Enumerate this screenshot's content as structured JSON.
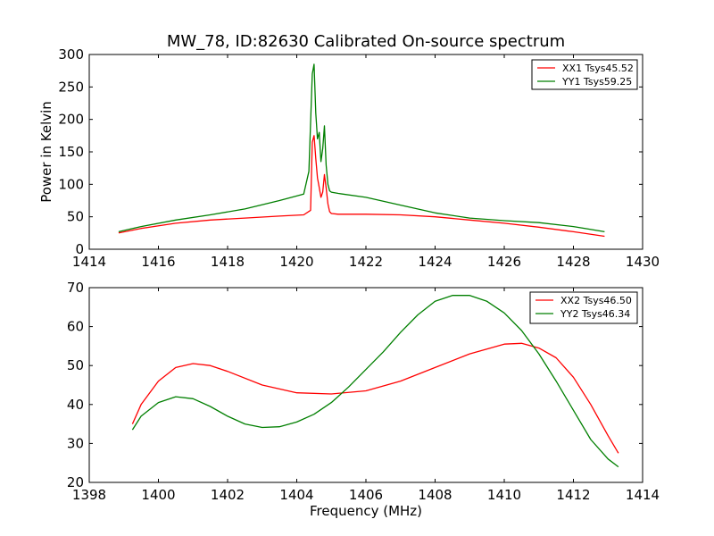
{
  "title": "MW_78, ID:82630 Calibrated On-source spectrum",
  "chart_data": [
    {
      "type": "line",
      "xlim": [
        1414,
        1430
      ],
      "ylim": [
        0,
        300
      ],
      "xticks": [
        "1414",
        "1416",
        "1418",
        "1420",
        "1422",
        "1424",
        "1426",
        "1428",
        "1430"
      ],
      "yticks": [
        "0",
        "50",
        "100",
        "150",
        "200",
        "250",
        "300"
      ],
      "xlabel": "",
      "ylabel": "Power in Kelvin",
      "legend_position": "top-right",
      "series": [
        {
          "name": "XX1 Tsys45.52",
          "color": "#ff0000",
          "x": [
            1414.85,
            1415.5,
            1416.5,
            1417.5,
            1418.5,
            1419.5,
            1420.2,
            1420.4,
            1420.45,
            1420.5,
            1420.55,
            1420.6,
            1420.65,
            1420.7,
            1420.75,
            1420.8,
            1420.85,
            1420.9,
            1420.95,
            1421.0,
            1421.2,
            1422.0,
            1423.0,
            1424.0,
            1425.0,
            1426.0,
            1427.0,
            1428.0,
            1428.9
          ],
          "y": [
            25,
            32,
            40,
            45,
            48,
            51,
            53,
            60,
            165,
            175,
            140,
            110,
            95,
            80,
            88,
            115,
            95,
            70,
            58,
            55,
            54,
            54,
            53,
            50,
            45,
            40,
            34,
            27,
            20
          ]
        },
        {
          "name": "YY1 Tsys59.25",
          "color": "#007f00",
          "x": [
            1414.85,
            1415.5,
            1416.5,
            1417.5,
            1418.5,
            1419.5,
            1420.2,
            1420.35,
            1420.45,
            1420.5,
            1420.55,
            1420.6,
            1420.65,
            1420.7,
            1420.75,
            1420.8,
            1420.85,
            1420.9,
            1420.95,
            1421.0,
            1421.2,
            1422.0,
            1423.0,
            1424.0,
            1425.0,
            1426.0,
            1427.0,
            1428.0,
            1428.9
          ],
          "y": [
            27,
            35,
            45,
            53,
            62,
            75,
            85,
            120,
            270,
            285,
            210,
            170,
            180,
            135,
            155,
            190,
            130,
            100,
            90,
            88,
            86,
            80,
            68,
            56,
            48,
            44,
            41,
            35,
            27
          ]
        }
      ]
    },
    {
      "type": "line",
      "xlim": [
        1398,
        1414
      ],
      "ylim": [
        20,
        70
      ],
      "xticks": [
        "1398",
        "1400",
        "1402",
        "1404",
        "1406",
        "1408",
        "1410",
        "1412",
        "1414"
      ],
      "yticks": [
        "20",
        "30",
        "40",
        "50",
        "60",
        "70"
      ],
      "xlabel": "Frequency (MHz)",
      "ylabel": "",
      "legend_position": "top-right",
      "series": [
        {
          "name": "XX2 Tsys46.50",
          "color": "#ff0000",
          "x": [
            1399.25,
            1399.5,
            1400.0,
            1400.5,
            1401.0,
            1401.5,
            1402.0,
            1403.0,
            1404.0,
            1405.0,
            1406.0,
            1407.0,
            1408.0,
            1409.0,
            1410.0,
            1410.5,
            1411.0,
            1411.5,
            1412.0,
            1412.5,
            1413.0,
            1413.3
          ],
          "y": [
            35,
            40,
            46,
            49.5,
            50.5,
            50,
            48.5,
            45,
            43,
            42.7,
            43.5,
            46,
            49.5,
            53,
            55.5,
            55.7,
            54.5,
            52,
            47,
            40,
            32,
            27.5
          ]
        },
        {
          "name": "YY2 Tsys46.34",
          "color": "#007f00",
          "x": [
            1399.25,
            1399.5,
            1400.0,
            1400.5,
            1401.0,
            1401.5,
            1402.0,
            1402.5,
            1403.0,
            1403.5,
            1404.0,
            1404.5,
            1405.0,
            1405.5,
            1406.0,
            1406.5,
            1407.0,
            1407.5,
            1408.0,
            1408.5,
            1409.0,
            1409.5,
            1410.0,
            1410.5,
            1411.0,
            1411.5,
            1412.0,
            1412.5,
            1413.0,
            1413.3
          ],
          "y": [
            33.5,
            37,
            40.5,
            42,
            41.5,
            39.5,
            37,
            35,
            34.1,
            34.3,
            35.5,
            37.5,
            40.5,
            44.5,
            49,
            53.5,
            58.5,
            63,
            66.5,
            68,
            68,
            66.5,
            63.5,
            59,
            53,
            46,
            38.5,
            31,
            26,
            24
          ]
        }
      ]
    }
  ]
}
